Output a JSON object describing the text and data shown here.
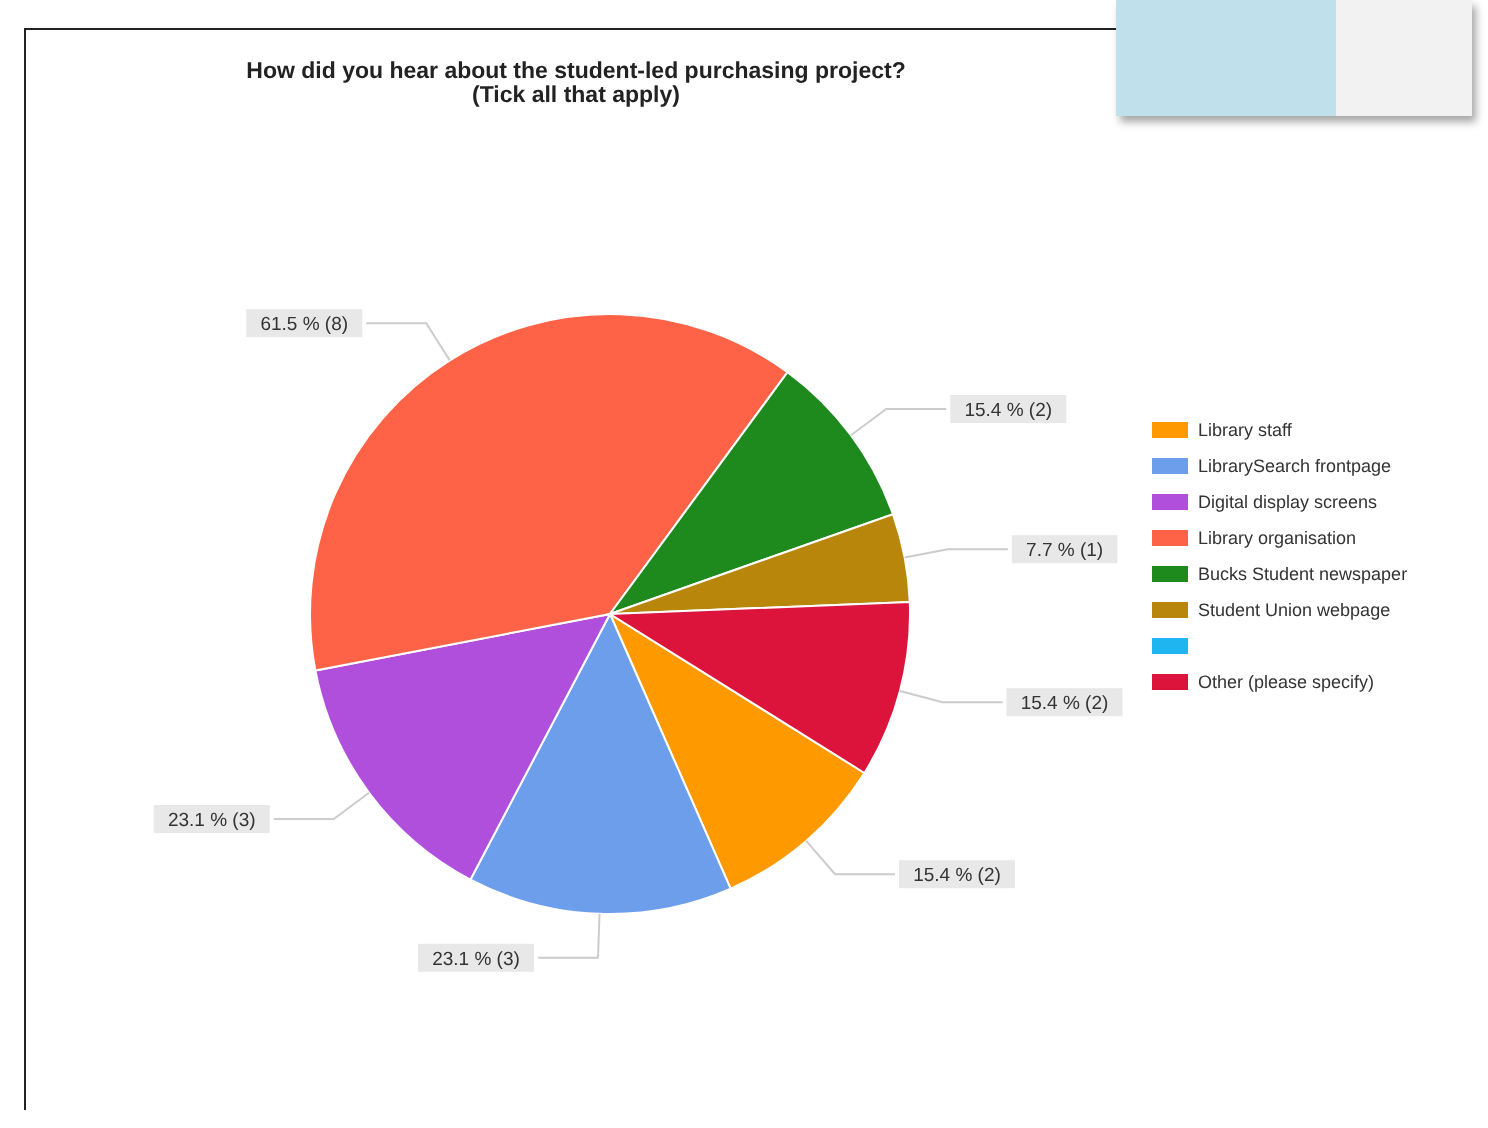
{
  "chart_data": {
    "type": "pie",
    "title": "How did you hear about the student-led purchasing project?",
    "subtitle": "(Tick all that apply)",
    "categories": [
      "Library staff",
      "LibrarySearch frontpage",
      "Digital display screens",
      "Library organisation",
      "Bucks Student newspaper",
      "Student Union webpage",
      null,
      "Other (please specify)"
    ],
    "values": [
      2,
      3,
      3,
      8,
      2,
      1,
      0,
      2
    ],
    "colors": [
      "#ff9900",
      "#6d9eeb",
      "#b04fdb",
      "#ff6347",
      "#1e8a1e",
      "#b8860b",
      "#1fb5f0",
      "#dc143c"
    ],
    "value_labels": [
      "15.4 % (2)",
      "23.1 % (3)",
      "23.1 % (3)",
      "61.5 % (8)",
      "15.4 % (2)",
      "7.7 % (1)",
      null,
      "15.4 % (2)"
    ],
    "legend": "right"
  }
}
